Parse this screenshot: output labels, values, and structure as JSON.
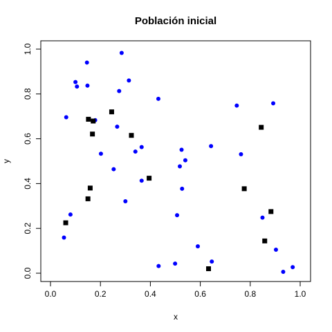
{
  "chart_data": {
    "type": "scatter",
    "title": "Población inicial",
    "xlabel": "x",
    "ylabel": "y",
    "xlim": [
      0.0,
      1.0
    ],
    "ylim": [
      0.0,
      1.0
    ],
    "xticks": [
      "0.0",
      "0.2",
      "0.4",
      "0.6",
      "0.8",
      "1.0"
    ],
    "yticks": [
      "0.0",
      "0.2",
      "0.4",
      "0.6",
      "0.8",
      "1.0"
    ],
    "grid": false,
    "colors": {
      "blue_points": "#0000ff",
      "black_squares": "#000000"
    },
    "series": [
      {
        "marker": "circle",
        "color": "#0000ff",
        "points": [
          [
            0.054,
            0.159
          ],
          [
            0.063,
            0.696
          ],
          [
            0.08,
            0.262
          ],
          [
            0.1,
            0.853
          ],
          [
            0.106,
            0.833
          ],
          [
            0.146,
            0.94
          ],
          [
            0.148,
            0.837
          ],
          [
            0.179,
            0.683
          ],
          [
            0.202,
            0.533
          ],
          [
            0.253,
            0.464
          ],
          [
            0.267,
            0.654
          ],
          [
            0.275,
            0.813
          ],
          [
            0.285,
            0.983
          ],
          [
            0.3,
            0.321
          ],
          [
            0.314,
            0.86
          ],
          [
            0.34,
            0.543
          ],
          [
            0.365,
            0.563
          ],
          [
            0.365,
            0.413
          ],
          [
            0.432,
            0.778
          ],
          [
            0.433,
            0.032
          ],
          [
            0.499,
            0.043
          ],
          [
            0.507,
            0.259
          ],
          [
            0.518,
            0.477
          ],
          [
            0.525,
            0.551
          ],
          [
            0.527,
            0.377
          ],
          [
            0.54,
            0.504
          ],
          [
            0.59,
            0.12
          ],
          [
            0.643,
            0.567
          ],
          [
            0.646,
            0.052
          ],
          [
            0.746,
            0.748
          ],
          [
            0.763,
            0.531
          ],
          [
            0.849,
            0.248
          ],
          [
            0.892,
            0.758
          ],
          [
            0.903,
            0.105
          ],
          [
            0.932,
            0.006
          ],
          [
            0.97,
            0.027
          ]
        ]
      },
      {
        "marker": "square",
        "color": "#000000",
        "points": [
          [
            0.061,
            0.225
          ],
          [
            0.15,
            0.332
          ],
          [
            0.152,
            0.687
          ],
          [
            0.159,
            0.38
          ],
          [
            0.168,
            0.621
          ],
          [
            0.171,
            0.679
          ],
          [
            0.245,
            0.72
          ],
          [
            0.324,
            0.615
          ],
          [
            0.395,
            0.424
          ],
          [
            0.633,
            0.02
          ],
          [
            0.776,
            0.377
          ],
          [
            0.844,
            0.651
          ],
          [
            0.858,
            0.144
          ],
          [
            0.883,
            0.275
          ]
        ]
      }
    ]
  }
}
